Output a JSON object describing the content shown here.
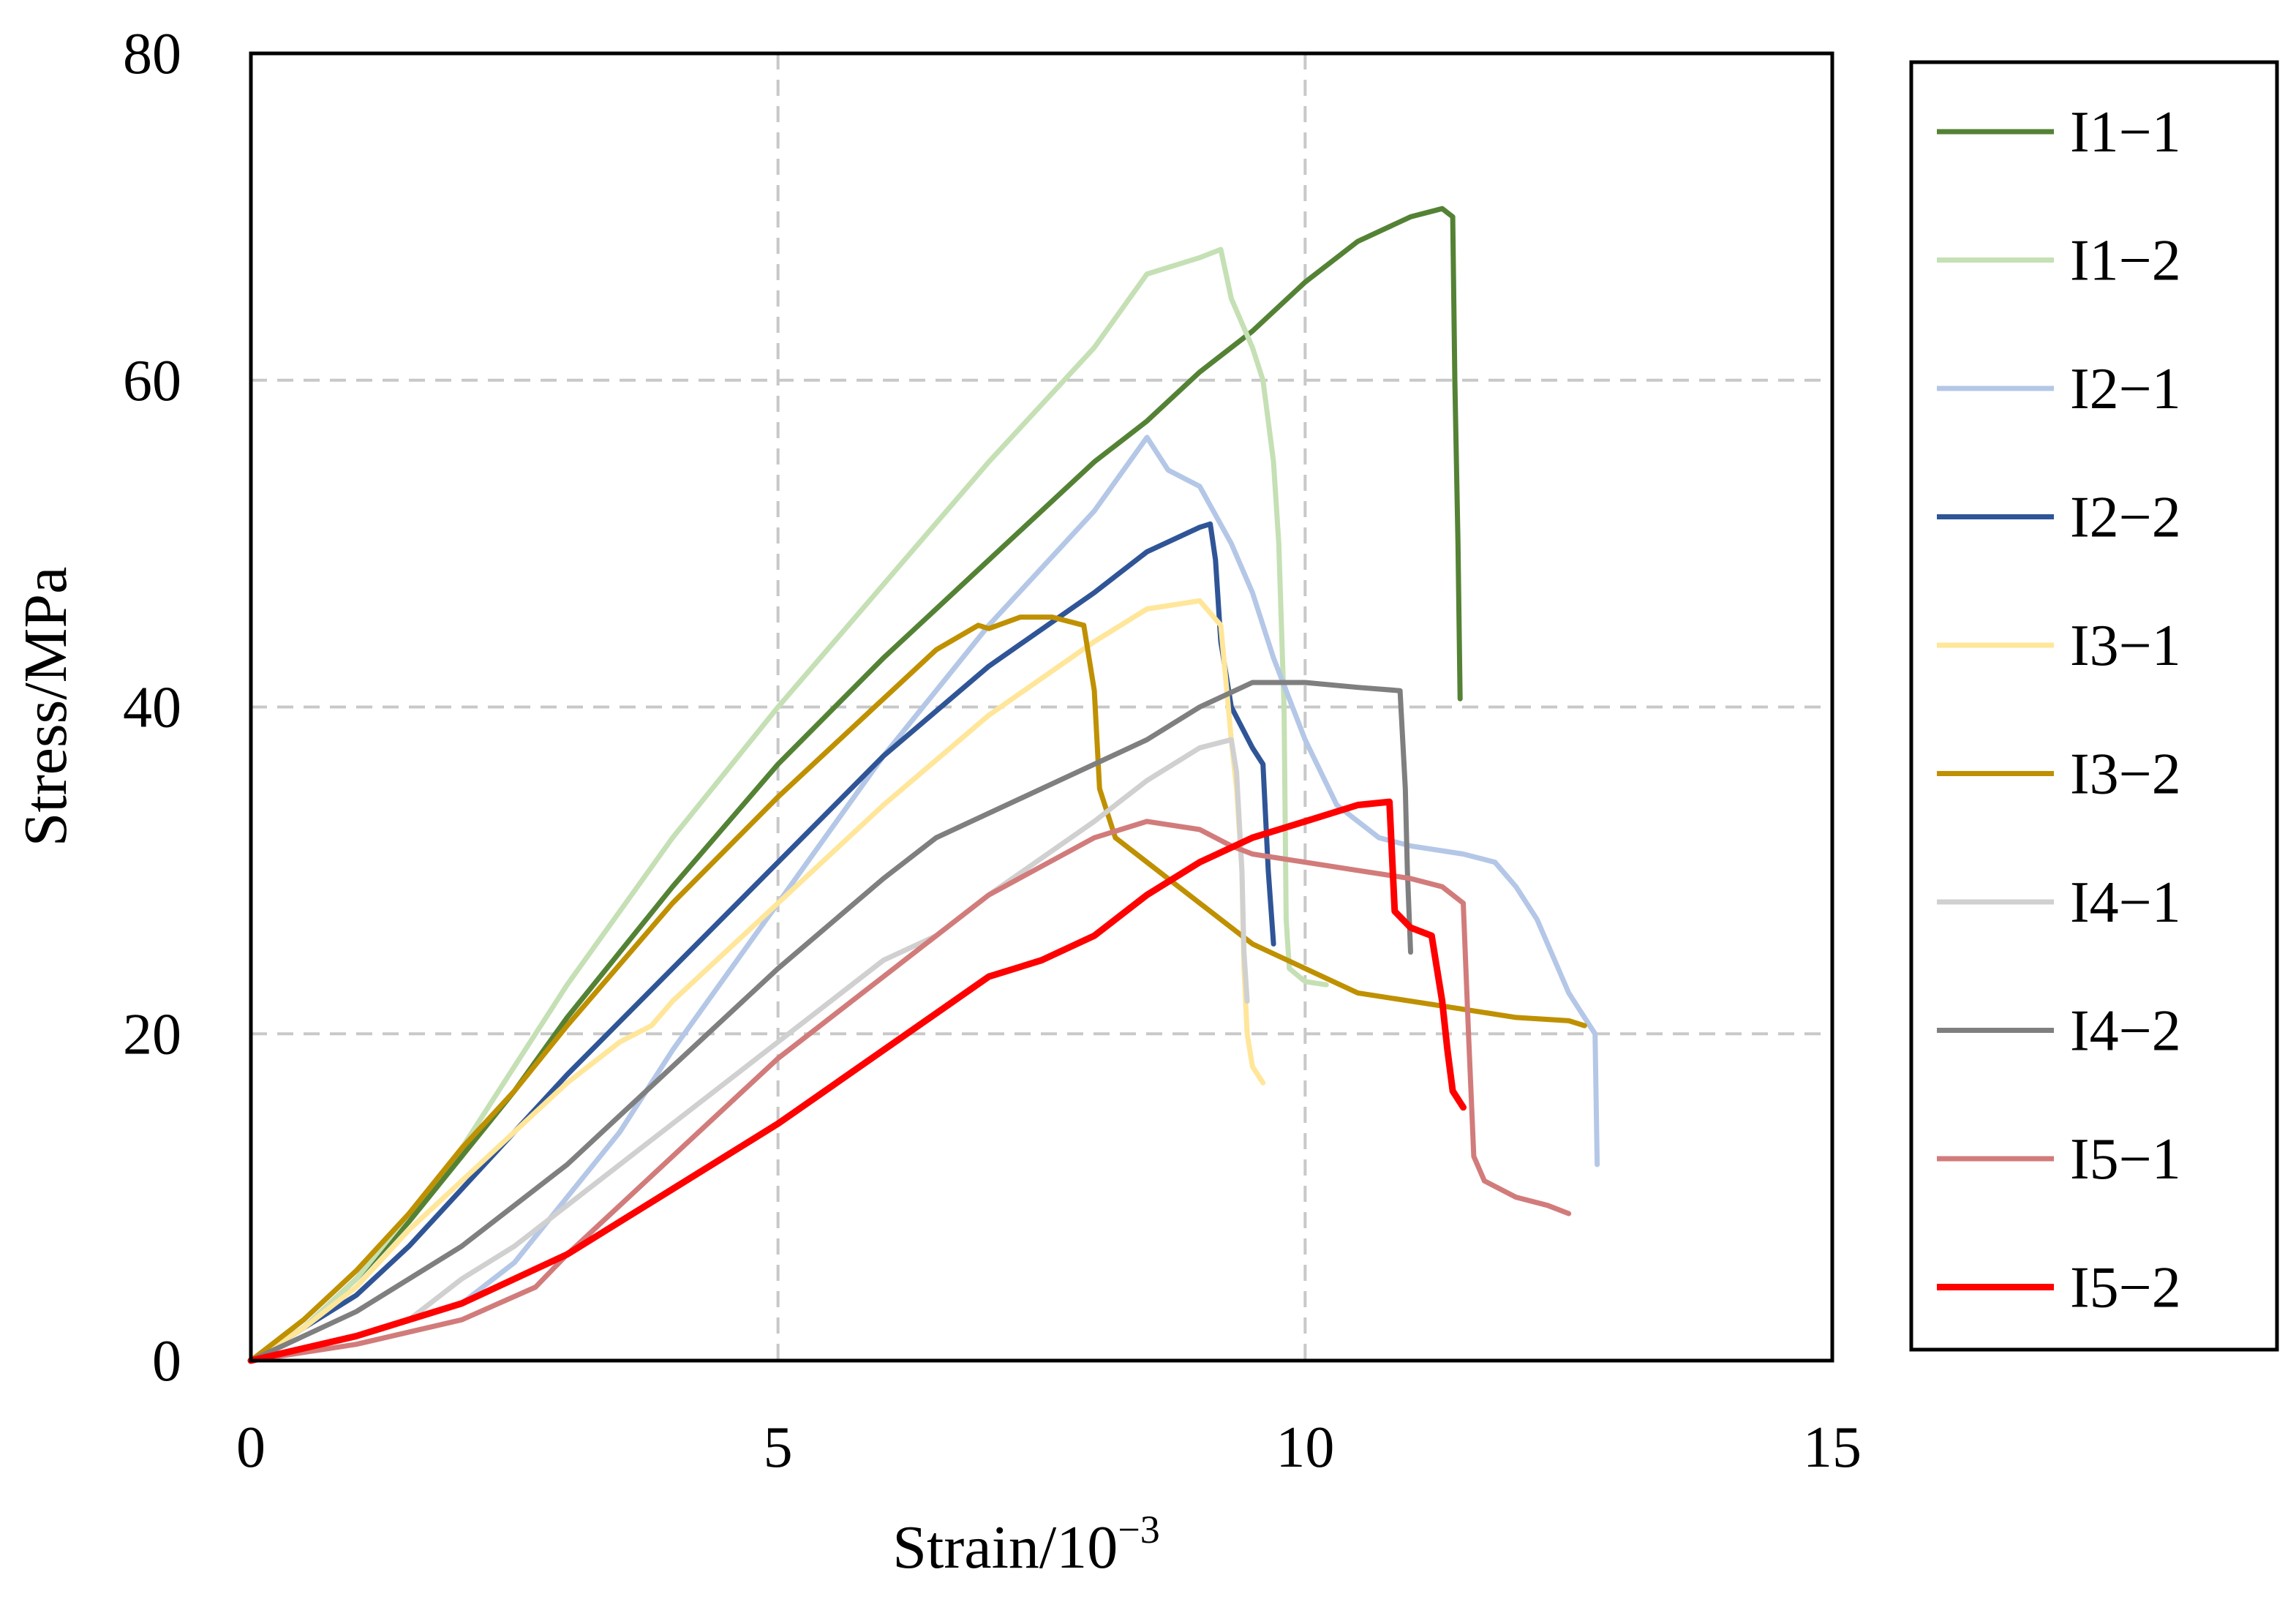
{
  "chart_data": {
    "type": "line",
    "title": "",
    "xlabel": "Strain/10",
    "xlabel_sup": "−3",
    "ylabel": "Stress/MPa",
    "xlim": [
      0,
      15
    ],
    "ylim": [
      0,
      80
    ],
    "xticks": [
      0,
      5,
      10,
      15
    ],
    "yticks": [
      0,
      20,
      40,
      60,
      80
    ],
    "xtick_labels": [
      "0",
      "5",
      "10",
      "15"
    ],
    "ytick_labels": [
      "0",
      "20",
      "40",
      "60",
      "80"
    ],
    "grid": true,
    "legend_position": "right",
    "series": [
      {
        "name": "I1−1",
        "color": "#548235",
        "points": [
          [
            0,
            0
          ],
          [
            0.5,
            2
          ],
          [
            1,
            5
          ],
          [
            1.5,
            8.5
          ],
          [
            2,
            12.5
          ],
          [
            2.5,
            16.5
          ],
          [
            3,
            21
          ],
          [
            4,
            29
          ],
          [
            5,
            36.5
          ],
          [
            6,
            43
          ],
          [
            7,
            49
          ],
          [
            8,
            55
          ],
          [
            8.5,
            57.5
          ],
          [
            9,
            60.5
          ],
          [
            9.5,
            63
          ],
          [
            10,
            66
          ],
          [
            10.5,
            68.5
          ],
          [
            11,
            70
          ],
          [
            11.3,
            70.5
          ],
          [
            11.4,
            70
          ],
          [
            11.42,
            60
          ],
          [
            11.45,
            50
          ],
          [
            11.47,
            40.5
          ]
        ]
      },
      {
        "name": "I1−2",
        "color": "#c5e0b4",
        "points": [
          [
            0,
            0
          ],
          [
            0.5,
            2
          ],
          [
            1,
            5
          ],
          [
            1.5,
            9
          ],
          [
            2,
            13
          ],
          [
            2.5,
            18
          ],
          [
            3,
            23
          ],
          [
            4,
            32
          ],
          [
            5,
            40
          ],
          [
            6,
            47.5
          ],
          [
            7,
            55
          ],
          [
            8,
            62
          ],
          [
            8.5,
            66.5
          ],
          [
            9,
            67.5
          ],
          [
            9.2,
            68
          ],
          [
            9.3,
            65
          ],
          [
            9.5,
            62
          ],
          [
            9.6,
            60
          ],
          [
            9.7,
            55
          ],
          [
            9.75,
            50
          ],
          [
            9.8,
            40
          ],
          [
            9.82,
            27
          ],
          [
            9.85,
            24
          ],
          [
            10,
            23.2
          ],
          [
            10.2,
            23
          ]
        ]
      },
      {
        "name": "I2−1",
        "color": "#b4c7e7",
        "points": [
          [
            0,
            0
          ],
          [
            1,
            1.5
          ],
          [
            2,
            3.5
          ],
          [
            2.5,
            6
          ],
          [
            3,
            10
          ],
          [
            3.5,
            14
          ],
          [
            4,
            19
          ],
          [
            5,
            28
          ],
          [
            6,
            37
          ],
          [
            7,
            45
          ],
          [
            8,
            52
          ],
          [
            8.5,
            56.5
          ],
          [
            8.7,
            54.5
          ],
          [
            9,
            53.5
          ],
          [
            9.3,
            50
          ],
          [
            9.5,
            47
          ],
          [
            9.7,
            43
          ],
          [
            10,
            38
          ],
          [
            10.3,
            34
          ],
          [
            10.7,
            32
          ],
          [
            11,
            31.5
          ],
          [
            11.5,
            31
          ],
          [
            11.8,
            30.5
          ],
          [
            12,
            29
          ],
          [
            12.2,
            27
          ],
          [
            12.5,
            22.5
          ],
          [
            12.75,
            20
          ],
          [
            12.77,
            12
          ]
        ]
      },
      {
        "name": "I2−2",
        "color": "#2f5597",
        "points": [
          [
            0,
            0
          ],
          [
            0.5,
            2
          ],
          [
            1,
            4
          ],
          [
            1.5,
            7
          ],
          [
            2,
            10.5
          ],
          [
            3,
            17.5
          ],
          [
            4,
            24
          ],
          [
            5,
            30.5
          ],
          [
            6,
            37
          ],
          [
            7,
            42.5
          ],
          [
            8,
            47
          ],
          [
            8.5,
            49.5
          ],
          [
            9,
            51
          ],
          [
            9.1,
            51.2
          ],
          [
            9.15,
            49
          ],
          [
            9.2,
            44
          ],
          [
            9.3,
            40
          ],
          [
            9.5,
            37.5
          ],
          [
            9.6,
            36.5
          ],
          [
            9.65,
            30
          ],
          [
            9.7,
            25.5
          ]
        ]
      },
      {
        "name": "I3−1",
        "color": "#ffe699",
        "points": [
          [
            0,
            0
          ],
          [
            0.5,
            2
          ],
          [
            1,
            4.5
          ],
          [
            1.5,
            8
          ],
          [
            2,
            11
          ],
          [
            2.5,
            14
          ],
          [
            3,
            17
          ],
          [
            3.5,
            19.5
          ],
          [
            3.8,
            20.5
          ],
          [
            4,
            22
          ],
          [
            4.5,
            25
          ],
          [
            5,
            28
          ],
          [
            6,
            34
          ],
          [
            7,
            39.5
          ],
          [
            8,
            44
          ],
          [
            8.5,
            46
          ],
          [
            9,
            46.5
          ],
          [
            9.2,
            45
          ],
          [
            9.3,
            38
          ],
          [
            9.35,
            35
          ],
          [
            9.4,
            30
          ],
          [
            9.42,
            24
          ],
          [
            9.45,
            20
          ],
          [
            9.5,
            18
          ],
          [
            9.6,
            17
          ]
        ]
      },
      {
        "name": "I3−2",
        "color": "#bf9000",
        "points": [
          [
            0,
            0
          ],
          [
            0.5,
            2.5
          ],
          [
            1,
            5.5
          ],
          [
            1.5,
            9
          ],
          [
            2,
            13
          ],
          [
            2.5,
            16.5
          ],
          [
            3,
            20.5
          ],
          [
            4,
            28
          ],
          [
            5,
            34.5
          ],
          [
            6,
            40.5
          ],
          [
            6.5,
            43.5
          ],
          [
            6.9,
            45
          ],
          [
            7,
            44.8
          ],
          [
            7.3,
            45.5
          ],
          [
            7.6,
            45.5
          ],
          [
            7.9,
            45
          ],
          [
            8,
            41
          ],
          [
            8.05,
            35
          ],
          [
            8.2,
            32
          ],
          [
            8.5,
            30.5
          ],
          [
            9,
            28
          ],
          [
            9.5,
            25.5
          ],
          [
            10,
            24
          ],
          [
            10.5,
            22.5
          ],
          [
            11,
            22
          ],
          [
            11.5,
            21.5
          ],
          [
            12,
            21
          ],
          [
            12.5,
            20.8
          ],
          [
            12.65,
            20.5
          ]
        ]
      },
      {
        "name": "I4−1",
        "color": "#d0d0d0",
        "points": [
          [
            0,
            0
          ],
          [
            1,
            1.5
          ],
          [
            1.5,
            2.5
          ],
          [
            2,
            5
          ],
          [
            2.5,
            7
          ],
          [
            3,
            9.5
          ],
          [
            4,
            14.5
          ],
          [
            5,
            19.5
          ],
          [
            6,
            24.5
          ],
          [
            6.5,
            26
          ],
          [
            7,
            28.5
          ],
          [
            8,
            33
          ],
          [
            8.5,
            35.5
          ],
          [
            9,
            37.5
          ],
          [
            9.3,
            38
          ],
          [
            9.35,
            36
          ],
          [
            9.4,
            30
          ],
          [
            9.42,
            25
          ],
          [
            9.45,
            22
          ]
        ]
      },
      {
        "name": "I4−2",
        "color": "#7f7f7f",
        "points": [
          [
            0,
            0
          ],
          [
            0.5,
            1.5
          ],
          [
            1,
            3
          ],
          [
            2,
            7
          ],
          [
            3,
            12
          ],
          [
            4,
            18
          ],
          [
            5,
            24
          ],
          [
            6,
            29.5
          ],
          [
            6.5,
            32
          ],
          [
            7,
            33.5
          ],
          [
            7.5,
            35
          ],
          [
            8,
            36.5
          ],
          [
            8.5,
            38
          ],
          [
            9,
            40
          ],
          [
            9.5,
            41.5
          ],
          [
            10,
            41.5
          ],
          [
            10.5,
            41.2
          ],
          [
            10.9,
            41
          ],
          [
            10.95,
            35
          ],
          [
            10.97,
            30
          ],
          [
            11,
            25
          ]
        ]
      },
      {
        "name": "I5−1",
        "color": "#d27b7b",
        "points": [
          [
            0,
            0
          ],
          [
            1,
            1
          ],
          [
            2,
            2.5
          ],
          [
            2.7,
            4.5
          ],
          [
            3,
            6.5
          ],
          [
            3.5,
            9.5
          ],
          [
            4,
            12.5
          ],
          [
            5,
            18.5
          ],
          [
            6,
            23.5
          ],
          [
            7,
            28.5
          ],
          [
            8,
            32
          ],
          [
            8.5,
            33
          ],
          [
            9,
            32.5
          ],
          [
            9.3,
            31.5
          ],
          [
            9.5,
            31
          ],
          [
            10,
            30.5
          ],
          [
            10.5,
            30
          ],
          [
            11,
            29.5
          ],
          [
            11.3,
            29
          ],
          [
            11.5,
            28
          ],
          [
            11.55,
            20
          ],
          [
            11.6,
            12.5
          ],
          [
            11.7,
            11
          ],
          [
            12,
            10
          ],
          [
            12.3,
            9.5
          ],
          [
            12.5,
            9
          ]
        ]
      },
      {
        "name": "I5−2",
        "color": "#ff0000",
        "points": [
          [
            0,
            0
          ],
          [
            1,
            1.5
          ],
          [
            2,
            3.5
          ],
          [
            3,
            6.5
          ],
          [
            4,
            10.5
          ],
          [
            5,
            14.5
          ],
          [
            6,
            19
          ],
          [
            7,
            23.5
          ],
          [
            7.5,
            24.5
          ],
          [
            8,
            26
          ],
          [
            8.5,
            28.5
          ],
          [
            9,
            30.5
          ],
          [
            9.5,
            32
          ],
          [
            10,
            33
          ],
          [
            10.5,
            34
          ],
          [
            10.8,
            34.2
          ],
          [
            10.85,
            27.5
          ],
          [
            11,
            26.5
          ],
          [
            11.2,
            26
          ],
          [
            11.3,
            22
          ],
          [
            11.35,
            19
          ],
          [
            11.4,
            16.5
          ],
          [
            11.5,
            15.5
          ]
        ]
      }
    ]
  }
}
